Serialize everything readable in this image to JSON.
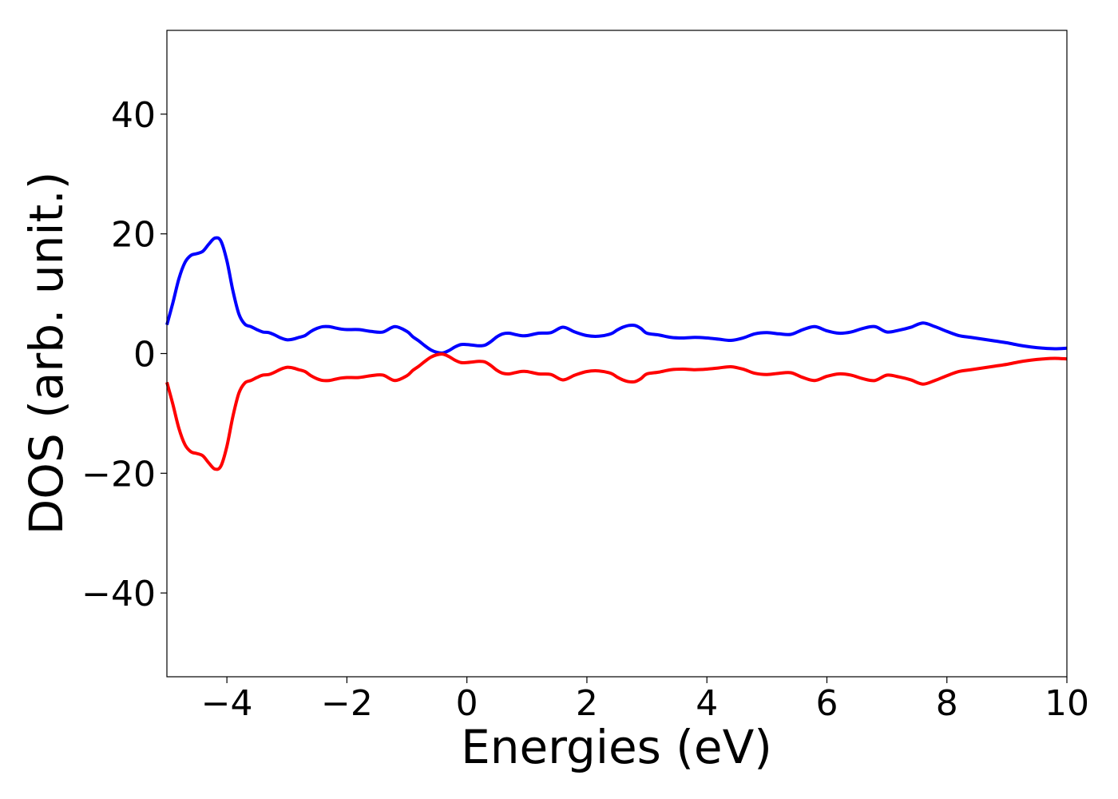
{
  "chart_data": {
    "type": "line",
    "title": "",
    "xlabel": "Energies (eV)",
    "ylabel": "DOS (arb. unit.)",
    "xlim": [
      -5,
      10
    ],
    "ylim": [
      -54,
      54
    ],
    "xticks": [
      -4,
      -2,
      0,
      2,
      4,
      6,
      8,
      10
    ],
    "xtick_labels": [
      "−4",
      "−2",
      "0",
      "2",
      "4",
      "6",
      "8",
      "10"
    ],
    "yticks": [
      -40,
      -20,
      0,
      20,
      40
    ],
    "ytick_labels": [
      "−40",
      "−20",
      "0",
      "20",
      "40"
    ],
    "grid": false,
    "legend": "none",
    "series": [
      {
        "color": "#0000ff",
        "x": [
          -5.0,
          -4.9,
          -4.8,
          -4.7,
          -4.6,
          -4.5,
          -4.4,
          -4.3,
          -4.2,
          -4.1,
          -4.0,
          -3.9,
          -3.8,
          -3.7,
          -3.6,
          -3.5,
          -3.4,
          -3.3,
          -3.2,
          -3.1,
          -3.0,
          -2.9,
          -2.8,
          -2.7,
          -2.6,
          -2.5,
          -2.4,
          -2.3,
          -2.2,
          -2.1,
          -2.0,
          -1.8,
          -1.6,
          -1.4,
          -1.2,
          -1.0,
          -0.9,
          -0.8,
          -0.7,
          -0.6,
          -0.5,
          -0.4,
          -0.3,
          -0.2,
          -0.1,
          0.0,
          0.1,
          0.2,
          0.3,
          0.4,
          0.5,
          0.6,
          0.7,
          0.8,
          0.9,
          1.0,
          1.2,
          1.4,
          1.6,
          1.8,
          2.0,
          2.2,
          2.4,
          2.5,
          2.6,
          2.7,
          2.8,
          2.9,
          3.0,
          3.2,
          3.4,
          3.6,
          3.8,
          4.0,
          4.2,
          4.4,
          4.6,
          4.8,
          5.0,
          5.2,
          5.4,
          5.6,
          5.8,
          6.0,
          6.2,
          6.4,
          6.6,
          6.8,
          7.0,
          7.2,
          7.4,
          7.6,
          7.8,
          8.0,
          8.2,
          8.4,
          8.6,
          8.8,
          9.0,
          9.2,
          9.4,
          9.6,
          9.8,
          10.0
        ],
        "y": [
          4.8,
          8.5,
          12.5,
          15.2,
          16.4,
          16.7,
          17.1,
          18.3,
          19.3,
          18.8,
          15.5,
          10.5,
          6.6,
          4.9,
          4.5,
          4.0,
          3.6,
          3.5,
          3.1,
          2.6,
          2.3,
          2.4,
          2.7,
          3.0,
          3.7,
          4.2,
          4.5,
          4.5,
          4.3,
          4.1,
          4.0,
          4.0,
          3.7,
          3.6,
          4.5,
          3.7,
          2.8,
          2.1,
          1.3,
          0.6,
          0.2,
          0.1,
          0.5,
          1.1,
          1.5,
          1.5,
          1.4,
          1.3,
          1.4,
          2.0,
          2.8,
          3.3,
          3.4,
          3.2,
          3.0,
          3.0,
          3.4,
          3.5,
          4.4,
          3.6,
          3.0,
          2.9,
          3.3,
          3.9,
          4.4,
          4.7,
          4.7,
          4.2,
          3.4,
          3.1,
          2.7,
          2.6,
          2.7,
          2.6,
          2.4,
          2.2,
          2.6,
          3.3,
          3.5,
          3.3,
          3.2,
          4.0,
          4.5,
          3.8,
          3.4,
          3.6,
          4.2,
          4.5,
          3.6,
          3.9,
          4.4,
          5.1,
          4.5,
          3.7,
          3.0,
          2.7,
          2.4,
          2.1,
          1.8,
          1.4,
          1.1,
          0.9,
          0.8,
          0.9
        ]
      },
      {
        "color": "#ff0000",
        "x": [
          -5.0,
          -4.9,
          -4.8,
          -4.7,
          -4.6,
          -4.5,
          -4.4,
          -4.3,
          -4.2,
          -4.1,
          -4.0,
          -3.9,
          -3.8,
          -3.7,
          -3.6,
          -3.5,
          -3.4,
          -3.3,
          -3.2,
          -3.1,
          -3.0,
          -2.9,
          -2.8,
          -2.7,
          -2.6,
          -2.5,
          -2.4,
          -2.3,
          -2.2,
          -2.1,
          -2.0,
          -1.8,
          -1.6,
          -1.4,
          -1.2,
          -1.0,
          -0.9,
          -0.8,
          -0.7,
          -0.6,
          -0.5,
          -0.4,
          -0.3,
          -0.2,
          -0.1,
          0.0,
          0.1,
          0.2,
          0.3,
          0.4,
          0.5,
          0.6,
          0.7,
          0.8,
          0.9,
          1.0,
          1.2,
          1.4,
          1.6,
          1.8,
          2.0,
          2.2,
          2.4,
          2.5,
          2.6,
          2.7,
          2.8,
          2.9,
          3.0,
          3.2,
          3.4,
          3.6,
          3.8,
          4.0,
          4.2,
          4.4,
          4.6,
          4.8,
          5.0,
          5.2,
          5.4,
          5.6,
          5.8,
          6.0,
          6.2,
          6.4,
          6.6,
          6.8,
          7.0,
          7.2,
          7.4,
          7.6,
          7.8,
          8.0,
          8.2,
          8.4,
          8.6,
          8.8,
          9.0,
          9.2,
          9.4,
          9.6,
          9.8,
          10.0
        ],
        "y": [
          -4.8,
          -8.5,
          -12.5,
          -15.2,
          -16.4,
          -16.7,
          -17.1,
          -18.3,
          -19.3,
          -18.8,
          -15.5,
          -10.5,
          -6.6,
          -4.9,
          -4.5,
          -4.0,
          -3.6,
          -3.5,
          -3.1,
          -2.6,
          -2.3,
          -2.4,
          -2.7,
          -3.0,
          -3.7,
          -4.2,
          -4.5,
          -4.5,
          -4.3,
          -4.1,
          -4.0,
          -4.0,
          -3.7,
          -3.6,
          -4.5,
          -3.7,
          -2.8,
          -2.1,
          -1.3,
          -0.6,
          -0.2,
          -0.1,
          -0.5,
          -1.1,
          -1.5,
          -1.5,
          -1.4,
          -1.3,
          -1.4,
          -2.0,
          -2.8,
          -3.3,
          -3.4,
          -3.2,
          -3.0,
          -3.0,
          -3.4,
          -3.5,
          -4.4,
          -3.6,
          -3.0,
          -2.9,
          -3.3,
          -3.9,
          -4.4,
          -4.7,
          -4.7,
          -4.2,
          -3.4,
          -3.1,
          -2.7,
          -2.6,
          -2.7,
          -2.6,
          -2.4,
          -2.2,
          -2.6,
          -3.3,
          -3.5,
          -3.3,
          -3.2,
          -4.0,
          -4.5,
          -3.8,
          -3.4,
          -3.6,
          -4.2,
          -4.5,
          -3.6,
          -3.9,
          -4.4,
          -5.1,
          -4.5,
          -3.7,
          -3.0,
          -2.7,
          -2.4,
          -2.1,
          -1.8,
          -1.4,
          -1.1,
          -0.9,
          -0.8,
          -0.9
        ]
      }
    ]
  }
}
